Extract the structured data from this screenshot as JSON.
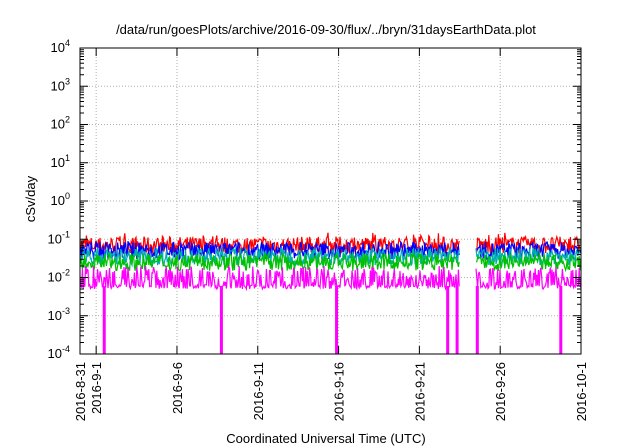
{
  "chart_data": {
    "type": "line",
    "title": "/data/run/goesPlots/archive/2016-09-30/flux/../bryn/31daysEarthData.plot",
    "xlabel": "Coordinated Universal Time (UTC)",
    "ylabel": "cSv/day",
    "yscale": "log",
    "ylim": [
      0.0001,
      10000
    ],
    "xlim": [
      "2016-08-31",
      "2016-10-01"
    ],
    "grid": true,
    "y_ticks": [
      {
        "value": 0.0001,
        "base": "10",
        "exp": "-4"
      },
      {
        "value": 0.001,
        "base": "10",
        "exp": "-3"
      },
      {
        "value": 0.01,
        "base": "10",
        "exp": "-2"
      },
      {
        "value": 0.1,
        "base": "10",
        "exp": "-1"
      },
      {
        "value": 1,
        "base": "10",
        "exp": "0"
      },
      {
        "value": 10,
        "base": "10",
        "exp": "1"
      },
      {
        "value": 100,
        "base": "10",
        "exp": "2"
      },
      {
        "value": 1000,
        "base": "10",
        "exp": "3"
      },
      {
        "value": 10000,
        "base": "10",
        "exp": "4"
      }
    ],
    "x_ticks": [
      {
        "date": "2016-08-31",
        "label": "2016-8-31"
      },
      {
        "date": "2016-09-01",
        "label": "2016-9-1"
      },
      {
        "date": "2016-09-06",
        "label": "2016-9-6"
      },
      {
        "date": "2016-09-11",
        "label": "2016-9-11"
      },
      {
        "date": "2016-09-16",
        "label": "2016-9-16"
      },
      {
        "date": "2016-09-21",
        "label": "2016-9-21"
      },
      {
        "date": "2016-09-26",
        "label": "2016-9-26"
      },
      {
        "date": "2016-10-01",
        "label": "2016-10-1"
      }
    ],
    "data_gap": [
      "2016-09-23T12:00",
      "2016-09-24T12:00"
    ],
    "series": [
      {
        "color": "#ff0000",
        "level": 0.07,
        "max": 0.15
      },
      {
        "color": "#0000ff",
        "level": 0.05,
        "max": 0.09
      },
      {
        "color": "#00b0b0",
        "level": 0.035,
        "max": 0.05
      },
      {
        "color": "#00c000",
        "level": 0.025,
        "max": 0.04
      },
      {
        "color": "#ff00ff",
        "level": 0.012,
        "min": 0.005
      }
    ],
    "dropouts": [
      {
        "date": "2016-09-01T12:00"
      },
      {
        "date": "2016-09-08T18:00"
      },
      {
        "date": "2016-09-15T21:00"
      },
      {
        "date": "2016-09-22T18:00"
      },
      {
        "date": "2016-09-23T08:00"
      },
      {
        "date": "2016-09-24T14:00"
      },
      {
        "date": "2016-09-29T18:00"
      }
    ]
  }
}
